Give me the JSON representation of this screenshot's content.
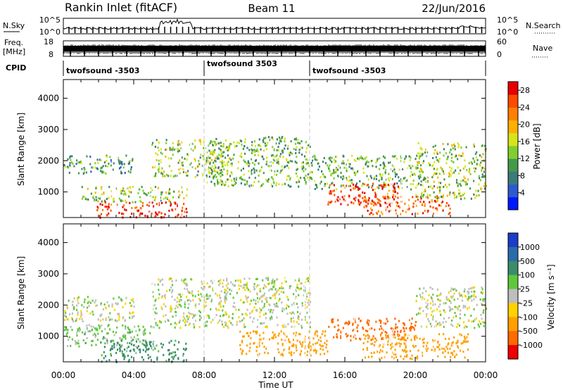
{
  "header": {
    "station": "Rankin Inlet (fitACF)",
    "beam": "Beam 11",
    "date": "22/Jun/2016"
  },
  "summary": {
    "nsky_label": "N.Sky",
    "nsearch_label": "N.Search",
    "nsky_ticks": [
      "10^5",
      "10^0"
    ],
    "nsearch_ticks": [
      "10^5",
      "10^0"
    ],
    "freq_label_line1": "Freq.",
    "freq_label_line2": "[MHz]",
    "freq_ticks": [
      "18",
      "8"
    ],
    "nave_label": "Nave",
    "nave_ticks": [
      "60",
      "0"
    ],
    "cpid_label": "CPID",
    "cpid_segments": [
      {
        "name": "twofsound -3503",
        "start_hour": 0,
        "end_hour": 8
      },
      {
        "name": "twofsound 3503",
        "start_hour": 8,
        "end_hour": 14
      },
      {
        "name": "twofsound -3503",
        "start_hour": 14,
        "end_hour": 24
      }
    ]
  },
  "chart_data": [
    {
      "type": "heatmap",
      "panel": "power",
      "ylabel": "Slant Range [km]",
      "y_ticks": [
        1000,
        2000,
        3000,
        4000
      ],
      "ylim": [
        180,
        4600
      ],
      "xlim_hours": [
        0,
        24
      ],
      "colorbar": {
        "label": "Power [dB]",
        "ticks": [
          "4",
          "8",
          "12",
          "16",
          "20",
          "24",
          "28"
        ],
        "range": [
          0,
          30
        ],
        "colors": [
          "#0018ff",
          "#2c5bd0",
          "#3d7a7a",
          "#44994a",
          "#7fcf2f",
          "#d8e31a",
          "#ffb000",
          "#ff8000",
          "#ff4a00",
          "#e80000"
        ]
      },
      "scatter_regions": [
        {
          "hours": [
            0,
            4
          ],
          "range_km": [
            1600,
            2200
          ],
          "value": 10
        },
        {
          "hours": [
            1,
            7
          ],
          "range_km": [
            700,
            1200
          ],
          "value": 14
        },
        {
          "hours": [
            1.8,
            7
          ],
          "range_km": [
            200,
            700
          ],
          "value": 28
        },
        {
          "hours": [
            5,
            9.5
          ],
          "range_km": [
            1500,
            2700
          ],
          "value": 14
        },
        {
          "hours": [
            8,
            14
          ],
          "range_km": [
            1200,
            2800
          ],
          "value": 12
        },
        {
          "hours": [
            14,
            20
          ],
          "range_km": [
            1100,
            2200
          ],
          "value": 12
        },
        {
          "hours": [
            15,
            19
          ],
          "range_km": [
            600,
            1300
          ],
          "value": 26
        },
        {
          "hours": [
            17,
            22
          ],
          "range_km": [
            300,
            900
          ],
          "value": 24
        },
        {
          "hours": [
            20,
            24
          ],
          "range_km": [
            800,
            2600
          ],
          "value": 14
        }
      ]
    },
    {
      "type": "heatmap",
      "panel": "velocity",
      "ylabel": "Slant Range [km]",
      "y_ticks": [
        1000,
        2000,
        3000,
        4000
      ],
      "ylim": [
        180,
        4600
      ],
      "xlim_hours": [
        0,
        24
      ],
      "colorbar": {
        "label": "Velocity [m s⁻¹]",
        "ticks": [
          "1000",
          "500",
          "100",
          "25",
          "-25",
          "-100",
          "-500",
          "-1000"
        ],
        "colors": [
          "#1a3cc8",
          "#2a6ba8",
          "#3a8c6a",
          "#5ec83a",
          "#bebebe",
          "#ffd200",
          "#ffa000",
          "#ff6a00",
          "#ee0000"
        ]
      },
      "scatter_regions": [
        {
          "hours": [
            0,
            4
          ],
          "range_km": [
            1500,
            2300
          ],
          "value": 0
        },
        {
          "hours": [
            0,
            5
          ],
          "range_km": [
            700,
            1400
          ],
          "value": 50
        },
        {
          "hours": [
            2,
            7
          ],
          "range_km": [
            200,
            900
          ],
          "value": 150
        },
        {
          "hours": [
            5,
            14
          ],
          "range_km": [
            1300,
            2900
          ],
          "value": 0
        },
        {
          "hours": [
            10,
            15
          ],
          "range_km": [
            400,
            1200
          ],
          "value": -300
        },
        {
          "hours": [
            15,
            20
          ],
          "range_km": [
            900,
            1600
          ],
          "value": -800
        },
        {
          "hours": [
            17,
            23
          ],
          "range_km": [
            300,
            1100
          ],
          "value": -200
        },
        {
          "hours": [
            20,
            24
          ],
          "range_km": [
            1300,
            2600
          ],
          "value": 0
        }
      ]
    }
  ],
  "x_axis": {
    "label": "Time UT",
    "ticks": [
      "00:00",
      "04:00",
      "08:00",
      "12:00",
      "16:00",
      "20:00",
      "00:00"
    ]
  },
  "colors": {
    "axis": "#000000",
    "boundary": "#c8c8c8",
    "background": "#ffffff"
  }
}
